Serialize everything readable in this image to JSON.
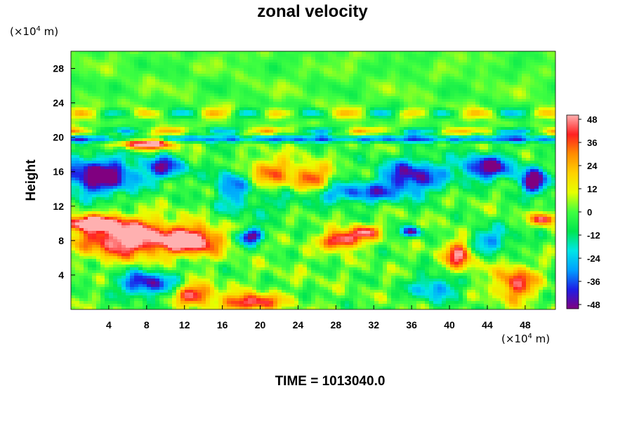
{
  "chart_data": {
    "type": "heatmap",
    "title": "zonal velocity",
    "ylabel": "Height",
    "y_unit": {
      "prefix": "(×10",
      "exp": "4",
      "suffix": " m)"
    },
    "x_unit": {
      "prefix": "(×10",
      "exp": "4",
      "suffix": " m)"
    },
    "footer": "TIME = 1013040.0",
    "x_ticks": [
      4,
      8,
      12,
      16,
      20,
      24,
      28,
      32,
      36,
      40,
      44,
      48
    ],
    "x_tick_labels": [
      "4",
      "8",
      "12",
      "16",
      "20",
      "24",
      "28",
      "32",
      "36",
      "40",
      "44",
      "48"
    ],
    "y_ticks": [
      4,
      8,
      12,
      16,
      20,
      24,
      28
    ],
    "y_tick_labels": [
      "4",
      "8",
      "12",
      "16",
      "20",
      "24",
      "28"
    ],
    "xlim": [
      0,
      51.2
    ],
    "ylim": [
      0,
      30
    ],
    "colorbar": {
      "min": -48,
      "max": 48,
      "ticks": [
        48,
        36,
        24,
        12,
        0,
        -12,
        -24,
        -36,
        -48
      ],
      "tick_labels": [
        "48",
        "36",
        "24",
        "12",
        "0",
        "-12",
        "-24",
        "-36",
        "-48"
      ],
      "colors": [
        "#800080",
        "#1e1ee6",
        "#00a0ff",
        "#00e6e6",
        "#00e650",
        "#40ff40",
        "#e6ff00",
        "#ffd200",
        "#ff8c00",
        "#ff2020",
        "#ffb0b0"
      ]
    },
    "features": [
      {
        "region": "upper (y 22-30)",
        "value_range": [
          -12,
          12
        ],
        "description_color": "green/yellow"
      },
      {
        "region": "stratified band near y 20",
        "value_range": [
          -48,
          24
        ]
      },
      {
        "region": "low-left jet y 6-10, x 0-14",
        "value": 48
      },
      {
        "region": "x 0-6, y 12-18",
        "value": -48
      }
    ]
  }
}
